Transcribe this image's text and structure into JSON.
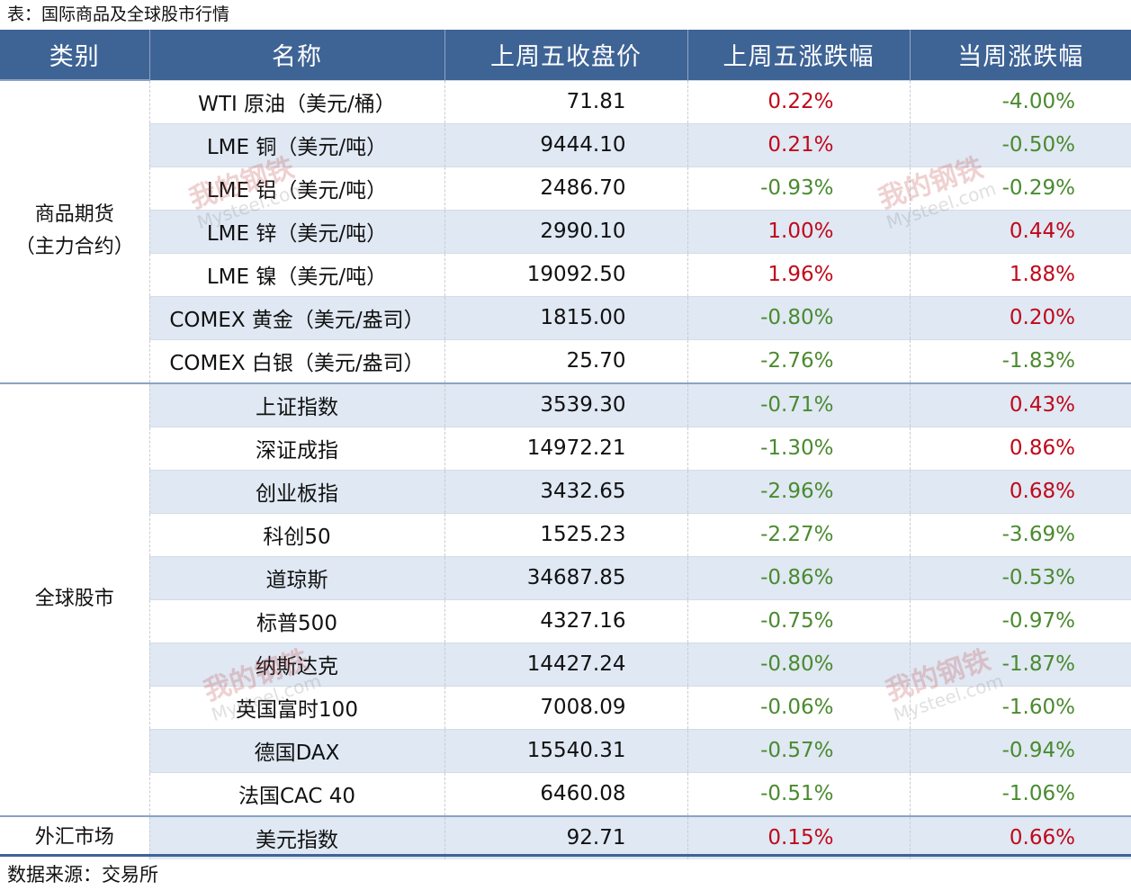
{
  "caption": "表：国际商品及全球股市行情",
  "source": "数据来源：交易所",
  "headers": [
    "类别",
    "名称",
    "上周五收盘价",
    "上周五涨跌幅",
    "当周涨跌幅"
  ],
  "groups": [
    {
      "category_line1": "商品期货",
      "category_line2": "（主力合约）",
      "rows": [
        {
          "name": "WTI 原油（美元/桶）",
          "price": "71.81",
          "prev_change": "0.22%",
          "week_change": "-4.00%"
        },
        {
          "name": "LME 铜（美元/吨）",
          "price": "9444.10",
          "prev_change": "0.21%",
          "week_change": "-0.50%"
        },
        {
          "name": "LME 铝（美元/吨）",
          "price": "2486.70",
          "prev_change": "-0.93%",
          "week_change": "-0.29%"
        },
        {
          "name": "LME 锌（美元/吨）",
          "price": "2990.10",
          "prev_change": "1.00%",
          "week_change": "0.44%"
        },
        {
          "name": "LME 镍（美元/吨）",
          "price": "19092.50",
          "prev_change": "1.96%",
          "week_change": "1.88%"
        },
        {
          "name": "COMEX 黄金（美元/盎司）",
          "price": "1815.00",
          "prev_change": "-0.80%",
          "week_change": "0.20%"
        },
        {
          "name": "COMEX 白银（美元/盎司）",
          "price": "25.70",
          "prev_change": "-2.76%",
          "week_change": "-1.83%"
        }
      ]
    },
    {
      "category_line1": "全球股市",
      "category_line2": "",
      "rows": [
        {
          "name": "上证指数",
          "price": "3539.30",
          "prev_change": "-0.71%",
          "week_change": "0.43%"
        },
        {
          "name": "深证成指",
          "price": "14972.21",
          "prev_change": "-1.30%",
          "week_change": "0.86%"
        },
        {
          "name": "创业板指",
          "price": "3432.65",
          "prev_change": "-2.96%",
          "week_change": "0.68%"
        },
        {
          "name": "科创50",
          "price": "1525.23",
          "prev_change": "-2.27%",
          "week_change": "-3.69%"
        },
        {
          "name": "道琼斯",
          "price": "34687.85",
          "prev_change": "-0.86%",
          "week_change": "-0.53%"
        },
        {
          "name": "标普500",
          "price": "4327.16",
          "prev_change": "-0.75%",
          "week_change": "-0.97%"
        },
        {
          "name": "纳斯达克",
          "price": "14427.24",
          "prev_change": "-0.80%",
          "week_change": "-1.87%"
        },
        {
          "name": "英国富时100",
          "price": "7008.09",
          "prev_change": "-0.06%",
          "week_change": "-1.60%"
        },
        {
          "name": "德国DAX",
          "price": "15540.31",
          "prev_change": "-0.57%",
          "week_change": "-0.94%"
        },
        {
          "name": "法国CAC 40",
          "price": "6460.08",
          "prev_change": "-0.51%",
          "week_change": "-1.06%"
        }
      ]
    },
    {
      "category_line1": "外汇市场",
      "category_line2": "",
      "rows": [
        {
          "name": "美元指数",
          "price": "92.71",
          "prev_change": "0.15%",
          "week_change": "0.66%"
        }
      ]
    }
  ],
  "colors": {
    "header_bg": "#3e6395",
    "alt_row_bg": "#dfe8f3",
    "up": "#c0081a",
    "down": "#4a8a2f"
  },
  "watermark": {
    "cn": "我的钢铁",
    "en": "Mysteel.com"
  }
}
